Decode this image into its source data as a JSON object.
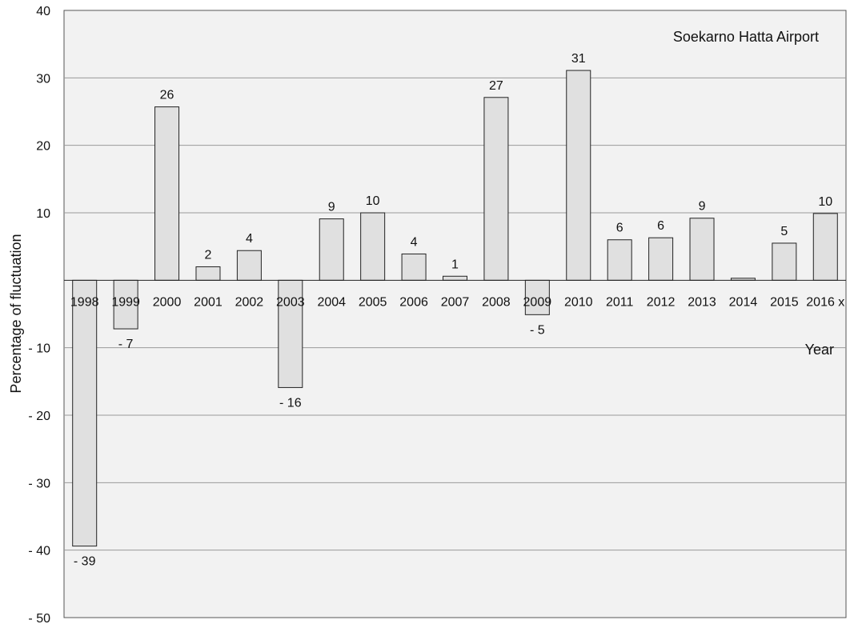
{
  "chart_data": {
    "type": "bar",
    "title": "Soekarno Hatta Airport",
    "xlabel": "Year",
    "ylabel": "Percentage of fluctuation",
    "ylim": [
      -50,
      40
    ],
    "yticks": [
      40,
      30,
      20,
      10,
      -10,
      -20,
      -30,
      -40,
      -50
    ],
    "ytick_labels": [
      "40",
      "30",
      "20",
      "10",
      "- 10",
      "- 20",
      "- 30",
      "- 40",
      "- 50"
    ],
    "grid": true,
    "bar_color": "#e0e0e0",
    "categories": [
      "1998",
      "1999",
      "2000",
      "2001",
      "2002",
      "2003",
      "2004",
      "2005",
      "2006",
      "2007",
      "2008",
      "2009",
      "2010",
      "2011",
      "2012",
      "2013",
      "2014",
      "2015",
      "2016 x"
    ],
    "values": [
      -39.4,
      -7.2,
      25.7,
      2.0,
      4.4,
      -15.9,
      9.1,
      10.0,
      3.9,
      0.6,
      27.1,
      -5.1,
      31.1,
      6.0,
      6.3,
      9.2,
      0.3,
      5.5,
      9.9
    ],
    "data_labels": [
      "- 39",
      "- 7",
      "26",
      "2",
      "4",
      "- 16",
      "9",
      "10",
      "4",
      "1",
      "27",
      "- 5",
      "31",
      "6",
      "6",
      "9",
      "",
      "5",
      "10"
    ]
  }
}
